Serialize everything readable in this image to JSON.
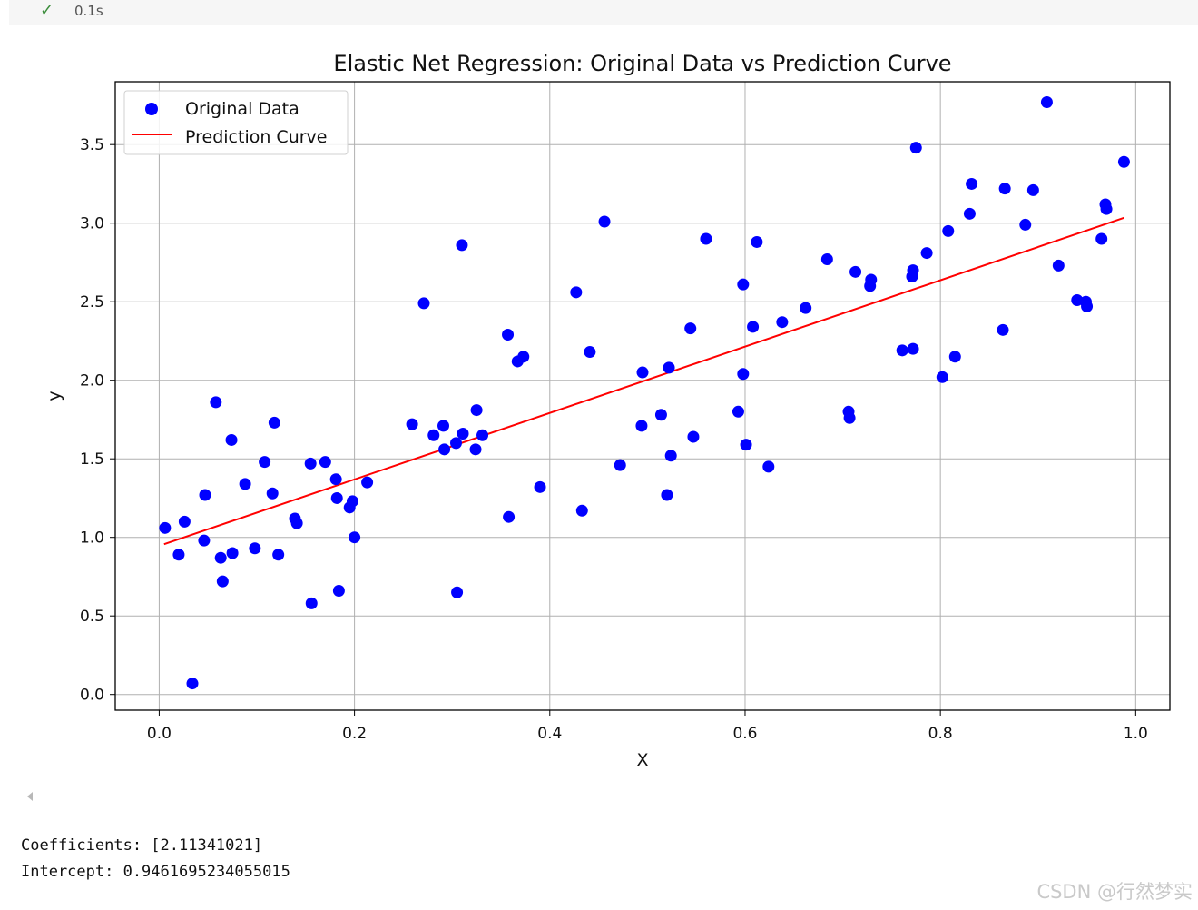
{
  "cell": {
    "status_icon": "check-icon",
    "exec_time": "0.1s",
    "output_lines": [
      "Coefficients: [2.11341021]",
      "Intercept: 0.9461695234055015"
    ]
  },
  "watermark": "CSDN @行然梦实",
  "chart_data": {
    "type": "scatter",
    "title": "Elastic Net Regression: Original Data vs Prediction Curve",
    "xlabel": "X",
    "ylabel": "y",
    "xlim": [
      -0.045,
      1.035
    ],
    "ylim": [
      -0.1,
      3.9
    ],
    "xticks": [
      0.0,
      0.2,
      0.4,
      0.6,
      0.8,
      1.0
    ],
    "xtick_labels": [
      "0.0",
      "0.2",
      "0.4",
      "0.6",
      "0.8",
      "1.0"
    ],
    "yticks": [
      0.0,
      0.5,
      1.0,
      1.5,
      2.0,
      2.5,
      3.0,
      3.5
    ],
    "ytick_labels": [
      "0.0",
      "0.5",
      "1.0",
      "1.5",
      "2.0",
      "2.5",
      "3.0",
      "3.5"
    ],
    "grid": true,
    "legend_position": "top-left",
    "legend": [
      "Original Data",
      "Prediction Curve"
    ],
    "colors": {
      "scatter": "#0000ff",
      "line": "#ff0000"
    },
    "scatter": {
      "name": "Original Data",
      "points": [
        [
          0.006,
          1.06
        ],
        [
          0.02,
          0.89
        ],
        [
          0.026,
          1.1
        ],
        [
          0.034,
          0.07
        ],
        [
          0.046,
          0.98
        ],
        [
          0.047,
          1.27
        ],
        [
          0.058,
          1.86
        ],
        [
          0.063,
          0.87
        ],
        [
          0.065,
          0.72
        ],
        [
          0.074,
          1.62
        ],
        [
          0.075,
          0.9
        ],
        [
          0.088,
          1.34
        ],
        [
          0.098,
          0.93
        ],
        [
          0.108,
          1.48
        ],
        [
          0.116,
          1.28
        ],
        [
          0.118,
          1.73
        ],
        [
          0.122,
          0.89
        ],
        [
          0.139,
          1.12
        ],
        [
          0.141,
          1.09
        ],
        [
          0.155,
          1.47
        ],
        [
          0.156,
          0.58
        ],
        [
          0.17,
          1.48
        ],
        [
          0.181,
          1.37
        ],
        [
          0.182,
          1.25
        ],
        [
          0.184,
          0.66
        ],
        [
          0.195,
          1.19
        ],
        [
          0.198,
          1.23
        ],
        [
          0.2,
          1.0
        ],
        [
          0.213,
          1.35
        ],
        [
          0.259,
          1.72
        ],
        [
          0.271,
          2.49
        ],
        [
          0.281,
          1.65
        ],
        [
          0.291,
          1.71
        ],
        [
          0.292,
          1.56
        ],
        [
          0.304,
          1.6
        ],
        [
          0.305,
          0.65
        ],
        [
          0.31,
          2.86
        ],
        [
          0.311,
          1.66
        ],
        [
          0.324,
          1.56
        ],
        [
          0.325,
          1.81
        ],
        [
          0.331,
          1.65
        ],
        [
          0.357,
          2.29
        ],
        [
          0.358,
          1.13
        ],
        [
          0.367,
          2.12
        ],
        [
          0.373,
          2.15
        ],
        [
          0.39,
          1.32
        ],
        [
          0.427,
          2.56
        ],
        [
          0.433,
          1.17
        ],
        [
          0.441,
          2.18
        ],
        [
          0.456,
          3.01
        ],
        [
          0.472,
          1.46
        ],
        [
          0.494,
          1.71
        ],
        [
          0.495,
          2.05
        ],
        [
          0.514,
          1.78
        ],
        [
          0.52,
          1.27
        ],
        [
          0.522,
          2.08
        ],
        [
          0.524,
          1.52
        ],
        [
          0.544,
          2.33
        ],
        [
          0.547,
          1.64
        ],
        [
          0.56,
          2.9
        ],
        [
          0.593,
          1.8
        ],
        [
          0.598,
          2.61
        ],
        [
          0.598,
          2.04
        ],
        [
          0.601,
          1.59
        ],
        [
          0.608,
          2.34
        ],
        [
          0.612,
          2.88
        ],
        [
          0.624,
          1.45
        ],
        [
          0.638,
          2.37
        ],
        [
          0.662,
          2.46
        ],
        [
          0.684,
          2.77
        ],
        [
          0.706,
          1.8
        ],
        [
          0.707,
          1.76
        ],
        [
          0.713,
          2.69
        ],
        [
          0.728,
          2.6
        ],
        [
          0.729,
          2.64
        ],
        [
          0.761,
          2.19
        ],
        [
          0.771,
          2.66
        ],
        [
          0.772,
          2.7
        ],
        [
          0.772,
          2.2
        ],
        [
          0.775,
          3.48
        ],
        [
          0.786,
          2.81
        ],
        [
          0.802,
          2.02
        ],
        [
          0.808,
          2.95
        ],
        [
          0.815,
          2.15
        ],
        [
          0.83,
          3.06
        ],
        [
          0.832,
          3.25
        ],
        [
          0.864,
          2.32
        ],
        [
          0.866,
          3.22
        ],
        [
          0.887,
          2.99
        ],
        [
          0.895,
          3.21
        ],
        [
          0.909,
          3.77
        ],
        [
          0.921,
          2.73
        ],
        [
          0.94,
          2.51
        ],
        [
          0.949,
          2.5
        ],
        [
          0.95,
          2.47
        ],
        [
          0.965,
          2.9
        ],
        [
          0.969,
          3.12
        ],
        [
          0.97,
          3.09
        ],
        [
          0.988,
          3.39
        ]
      ]
    },
    "line": {
      "name": "Prediction Curve",
      "x": [
        0.005,
        0.988
      ],
      "y": [
        0.957,
        3.034
      ]
    }
  }
}
